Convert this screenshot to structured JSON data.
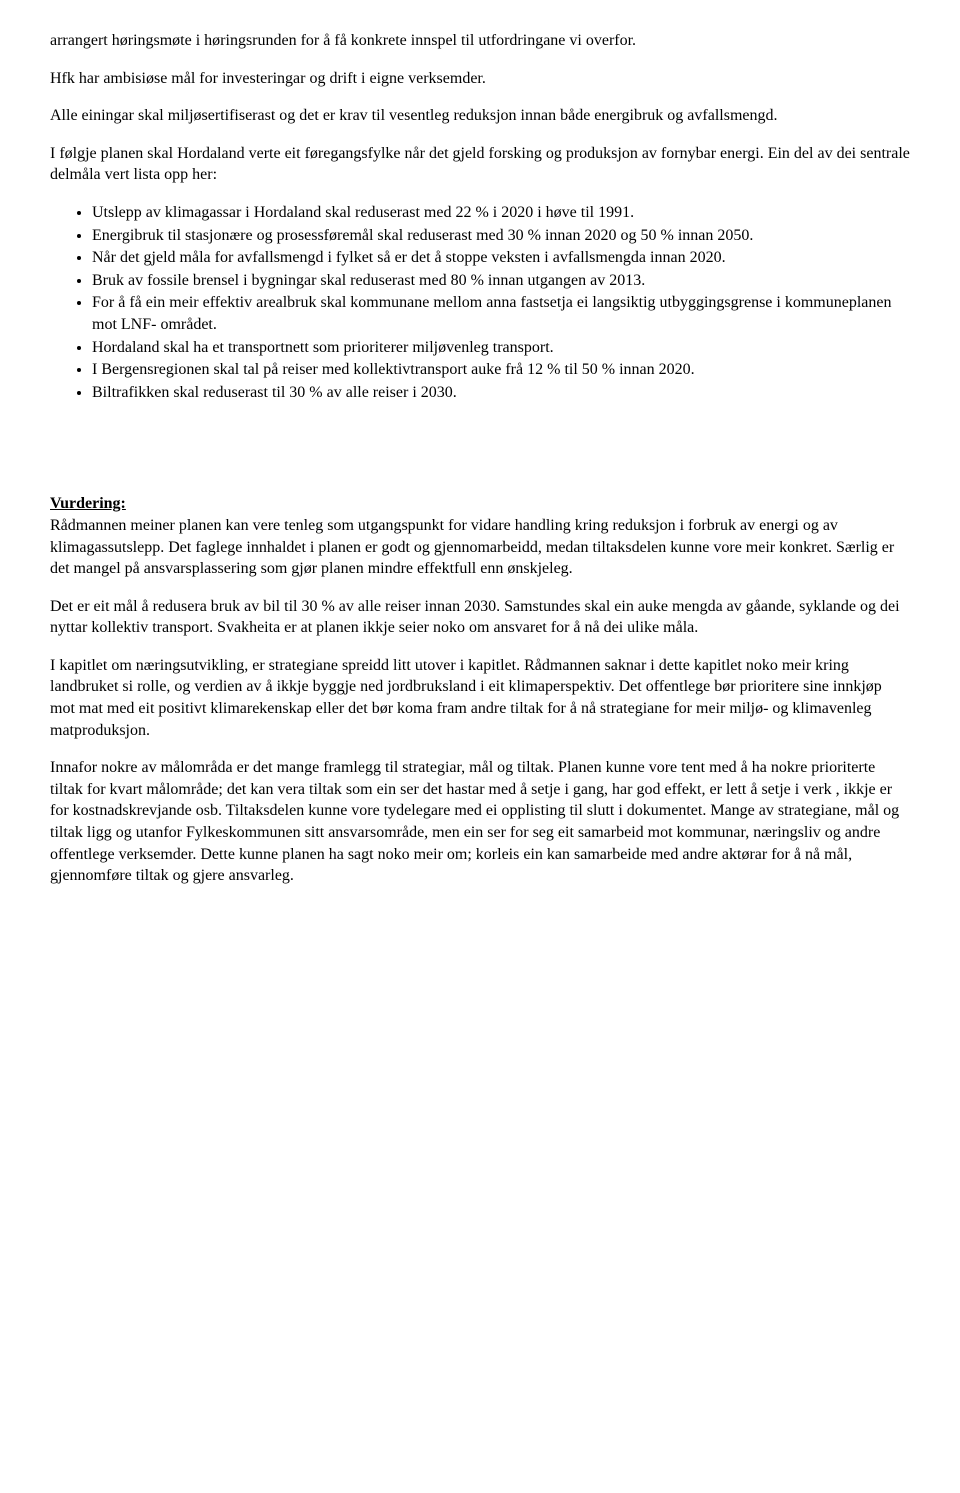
{
  "para1": "arrangert høringsmøte i høringsrunden for å få konkrete innspel til utfordringane vi overfor.",
  "para2": "Hfk har ambisiøse mål for investeringar og drift i eigne verksemder.",
  "para3": "Alle einingar skal miljøsertifiserast og det er krav til vesentleg reduksjon innan både energibruk og avfallsmengd.",
  "para4": "I følgje planen skal Hordaland verte eit føregangsfylke når det gjeld forsking og produksjon av fornybar energi. Ein del av dei sentrale delmåla vert lista opp her:",
  "bullets": [
    "Utslepp av klimagassar i Hordaland skal reduserast med 22 % i 2020 i høve til 1991.",
    "Energibruk til stasjonære og prosessføremål skal reduserast med 30 % innan 2020 og 50 % innan 2050.",
    "Når det gjeld måla for avfallsmengd i fylket så er det å stoppe veksten i avfallsmengda innan 2020.",
    "Bruk av fossile brensel i bygningar skal reduserast med 80 % innan utgangen av 2013.",
    "For å få ein meir effektiv arealbruk skal kommunane mellom anna fastsetja ei langsiktig utbyggingsgrense i kommuneplanen mot LNF- området.",
    "Hordaland skal ha et transportnett som prioriterer miljøvenleg transport.",
    "I Bergensregionen skal tal på reiser med kollektivtransport auke frå 12 % til 50 % innan 2020.",
    "Biltrafikken skal reduserast til 30 % av alle reiser i 2030."
  ],
  "vurdering_heading": "Vurdering:",
  "vurdering_p1": "Rådmannen meiner planen kan vere tenleg som utgangspunkt for vidare handling kring reduksjon i forbruk av energi og av klimagassutslepp. Det faglege innhaldet i planen er godt og gjennomarbeidd, medan tiltaksdelen kunne vore meir konkret. Særlig er det mangel på ansvarsplassering som gjør planen mindre effektfull enn ønskjeleg.",
  "vurdering_p2": "Det er eit mål å redusera bruk av bil til 30 % av alle reiser innan 2030. Samstundes skal ein auke mengda av gåande, syklande og dei nyttar kollektiv transport. Svakheita er at planen ikkje seier noko om ansvaret for å nå dei ulike måla.",
  "vurdering_p3": "I kapitlet om næringsutvikling, er strategiane spreidd litt utover i kapitlet. Rådmannen saknar i dette kapitlet noko meir kring landbruket si rolle, og verdien av å ikkje byggje ned jordbruksland i eit klimaperspektiv. Det offentlege bør prioritere sine innkjøp mot mat med eit positivt klimarekenskap eller det bør koma fram andre tiltak for å nå strategiane for meir miljø- og klimavenleg matproduksjon.",
  "vurdering_p4": "Innafor nokre av målområda er det mange framlegg til strategiar, mål og tiltak. Planen kunne vore tent med å ha nokre prioriterte tiltak for kvart målområde; det kan vera tiltak som ein ser det hastar med å setje i gang, har god effekt, er lett å setje i verk , ikkje er for kostnadskrevjande osb. Tiltaksdelen kunne vore tydelegare med ei opplisting til slutt i dokumentet. Mange av strategiane, mål og tiltak ligg og utanfor Fylkeskommunen sitt ansvarsområde, men ein ser for seg eit samarbeid mot kommunar, næringsliv og andre offentlege verksemder. Dette kunne planen ha sagt noko meir om; korleis ein kan samarbeide med andre aktørar for å nå mål, gjennomføre tiltak og gjere ansvarleg."
}
